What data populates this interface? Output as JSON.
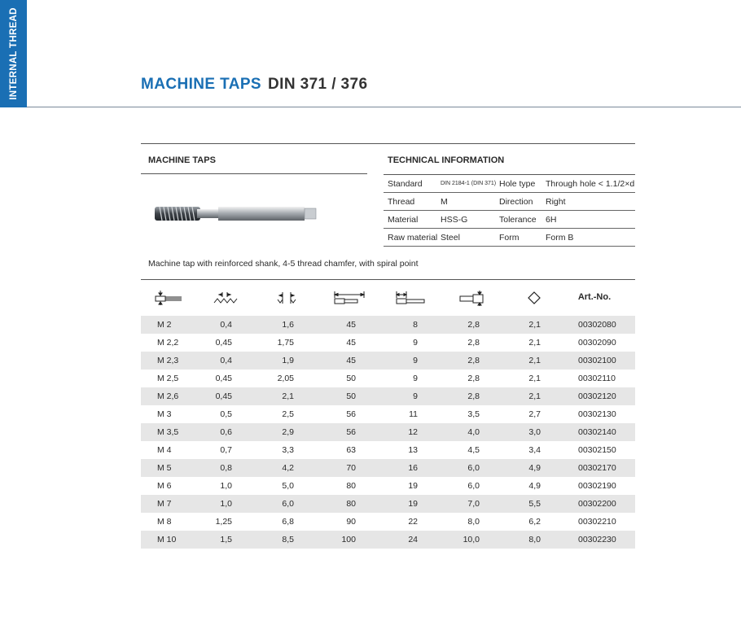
{
  "side_tab": {
    "label": "INTERNAL THREAD"
  },
  "title": {
    "main": "MACHINE TAPS",
    "sub": "DIN 371 / 376"
  },
  "product_section": {
    "heading": "MACHINE TAPS",
    "caption": "Machine tap with reinforced shank, 4-5 thread chamfer, with spiral point"
  },
  "tech_section": {
    "heading": "TECHNICAL INFORMATION",
    "rows": [
      {
        "label1": "Standard",
        "value1": "DIN 2184-1 (DIN 371)",
        "label2": "Hole type",
        "value2": "Through hole < 1.1/2×d"
      },
      {
        "label1": "Thread",
        "value1": "M",
        "label2": "Direction",
        "value2": "Right"
      },
      {
        "label1": "Material",
        "value1": "HSS-G",
        "label2": "Tolerance",
        "value2": "6H"
      },
      {
        "label1": "Raw material",
        "value1": "Steel",
        "label2": "Form",
        "value2": "Form B"
      }
    ]
  },
  "table": {
    "column_icons": [
      "tap-diameter-icon",
      "thread-pitch-icon",
      "core-hole-diameter-icon",
      "overall-length-icon",
      "thread-length-icon",
      "shank-diameter-icon",
      "square-size-icon"
    ],
    "art_header": "Art.-No.",
    "rows": [
      [
        "M 2",
        "0,4",
        "1,6",
        "45",
        "8",
        "2,8",
        "2,1",
        "00302080"
      ],
      [
        "M 2,2",
        "0,45",
        "1,75",
        "45",
        "9",
        "2,8",
        "2,1",
        "00302090"
      ],
      [
        "M 2,3",
        "0,4",
        "1,9",
        "45",
        "9",
        "2,8",
        "2,1",
        "00302100"
      ],
      [
        "M 2,5",
        "0,45",
        "2,05",
        "50",
        "9",
        "2,8",
        "2,1",
        "00302110"
      ],
      [
        "M 2,6",
        "0,45",
        "2,1",
        "50",
        "9",
        "2,8",
        "2,1",
        "00302120"
      ],
      [
        "M 3",
        "0,5",
        "2,5",
        "56",
        "11",
        "3,5",
        "2,7",
        "00302130"
      ],
      [
        "M 3,5",
        "0,6",
        "2,9",
        "56",
        "12",
        "4,0",
        "3,0",
        "00302140"
      ],
      [
        "M 4",
        "0,7",
        "3,3",
        "63",
        "13",
        "4,5",
        "3,4",
        "00302150"
      ],
      [
        "M 5",
        "0,8",
        "4,2",
        "70",
        "16",
        "6,0",
        "4,9",
        "00302170"
      ],
      [
        "M 6",
        "1,0",
        "5,0",
        "80",
        "19",
        "6,0",
        "4,9",
        "00302190"
      ],
      [
        "M 7",
        "1,0",
        "6,0",
        "80",
        "19",
        "7,0",
        "5,5",
        "00302200"
      ],
      [
        "M 8",
        "1,25",
        "6,8",
        "90",
        "22",
        "8,0",
        "6,2",
        "00302210"
      ],
      [
        "M 10",
        "1,5",
        "8,5",
        "100",
        "24",
        "10,0",
        "8,0",
        "00302230"
      ]
    ]
  },
  "colors": {
    "accent": "#1a6fb4",
    "row_shade": "#e6e6e6",
    "rule": "#555555"
  }
}
